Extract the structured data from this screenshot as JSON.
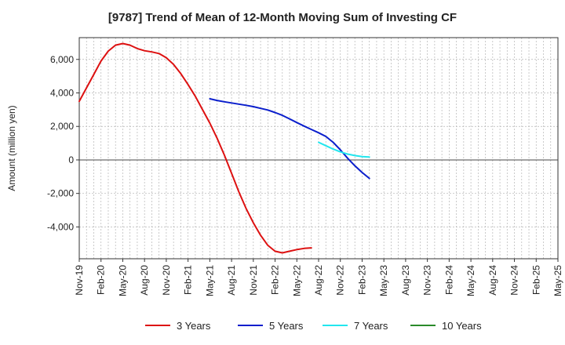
{
  "chart_data": {
    "type": "line",
    "title": "[9787]  Trend of Mean of 12-Month Moving Sum of Investing CF",
    "xlabel": "",
    "ylabel": "Amount (million yen)",
    "ylim": [
      -5900,
      7300
    ],
    "grid": true,
    "legend_position": "bottom",
    "categories": [
      "Nov-19",
      "Feb-20",
      "May-20",
      "Aug-20",
      "Nov-20",
      "Feb-21",
      "May-21",
      "Aug-21",
      "Nov-21",
      "Feb-22",
      "May-22",
      "Aug-22",
      "Nov-22",
      "Feb-23",
      "May-23",
      "Aug-23",
      "Nov-23",
      "Feb-24",
      "May-24",
      "Aug-24",
      "Nov-24",
      "Feb-25",
      "May-25"
    ],
    "yticks": [
      6000,
      4000,
      2000,
      0,
      -2000,
      -4000
    ],
    "ytick_labels": [
      "6,000",
      "4,000",
      "2,000",
      "0",
      "-2,000",
      "-4,000"
    ],
    "series": [
      {
        "name": "3 Years",
        "color": "#dd1111",
        "points": [
          [
            0,
            3500
          ],
          [
            1,
            4300
          ],
          [
            2,
            5100
          ],
          [
            3,
            5900
          ],
          [
            4,
            6500
          ],
          [
            5,
            6850
          ],
          [
            6,
            6950
          ],
          [
            7,
            6850
          ],
          [
            8,
            6650
          ],
          [
            9,
            6520
          ],
          [
            10,
            6450
          ],
          [
            11,
            6350
          ],
          [
            12,
            6100
          ],
          [
            13,
            5700
          ],
          [
            14,
            5150
          ],
          [
            15,
            4500
          ],
          [
            16,
            3800
          ],
          [
            17,
            3000
          ],
          [
            18,
            2200
          ],
          [
            19,
            1300
          ],
          [
            20,
            300
          ],
          [
            21,
            -800
          ],
          [
            22,
            -1900
          ],
          [
            23,
            -2900
          ],
          [
            24,
            -3750
          ],
          [
            25,
            -4500
          ],
          [
            26,
            -5100
          ],
          [
            27,
            -5450
          ],
          [
            28,
            -5550
          ],
          [
            29,
            -5450
          ],
          [
            30,
            -5350
          ],
          [
            31,
            -5280
          ],
          [
            32,
            -5250
          ]
        ]
      },
      {
        "name": "5 Years",
        "color": "#0a1ecc",
        "points": [
          [
            18,
            3650
          ],
          [
            19,
            3550
          ],
          [
            20,
            3470
          ],
          [
            21,
            3400
          ],
          [
            22,
            3330
          ],
          [
            23,
            3260
          ],
          [
            24,
            3180
          ],
          [
            25,
            3080
          ],
          [
            26,
            2980
          ],
          [
            27,
            2830
          ],
          [
            28,
            2660
          ],
          [
            29,
            2450
          ],
          [
            30,
            2230
          ],
          [
            31,
            2020
          ],
          [
            32,
            1820
          ],
          [
            33,
            1620
          ],
          [
            34,
            1400
          ],
          [
            35,
            1050
          ],
          [
            36,
            600
          ],
          [
            37,
            100
          ],
          [
            38,
            -350
          ],
          [
            39,
            -750
          ],
          [
            40,
            -1100
          ]
        ]
      },
      {
        "name": "7 Years",
        "color": "#22e6ee",
        "points": [
          [
            33,
            1050
          ],
          [
            34,
            850
          ],
          [
            35,
            650
          ],
          [
            36,
            480
          ],
          [
            37,
            350
          ],
          [
            38,
            260
          ],
          [
            39,
            200
          ],
          [
            40,
            170
          ]
        ]
      },
      {
        "name": "10 Years",
        "color": "#2a8a2a",
        "points": []
      }
    ]
  }
}
